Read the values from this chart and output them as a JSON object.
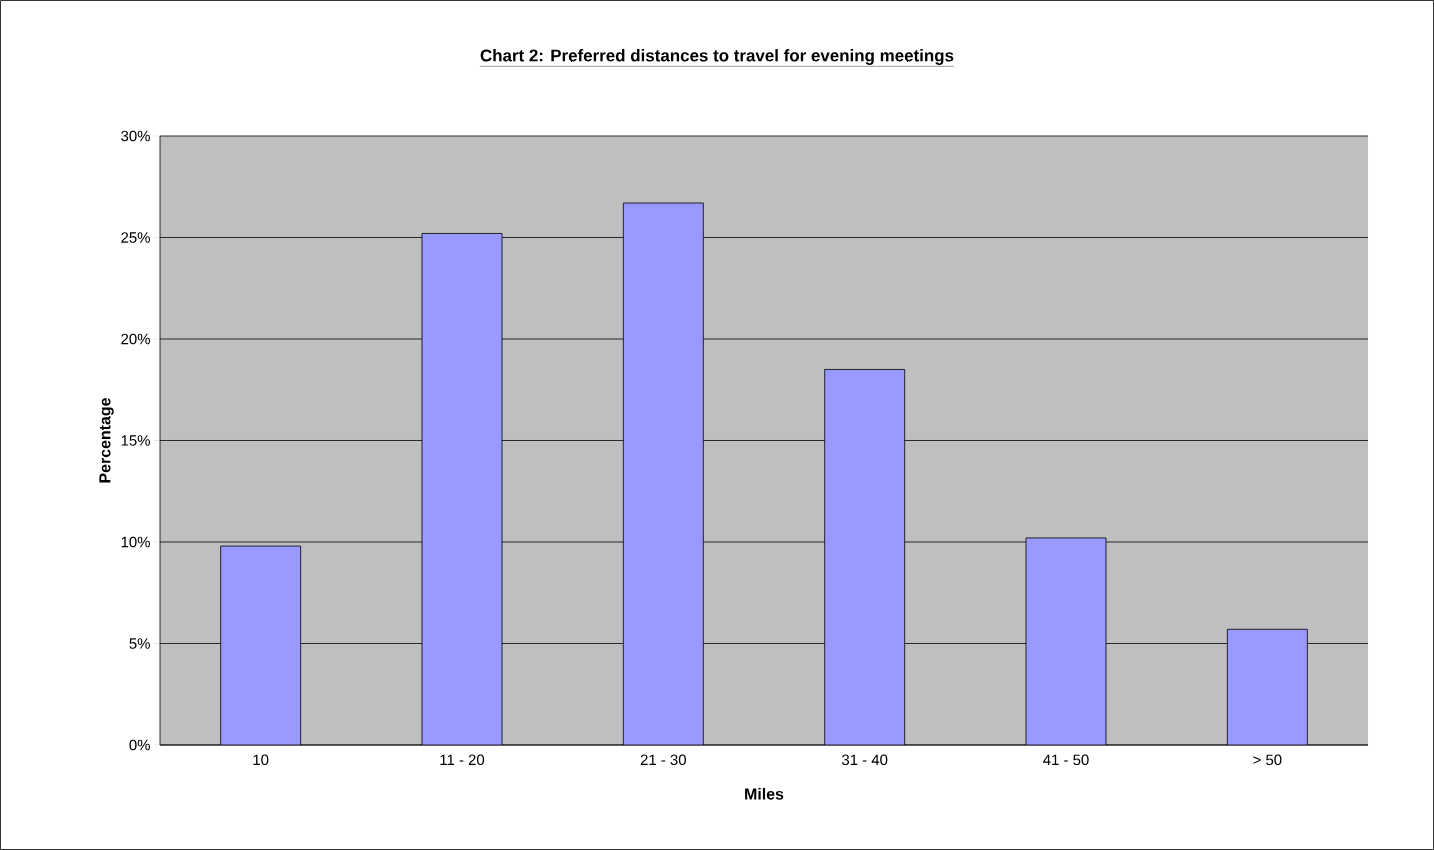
{
  "chart_data": {
    "type": "bar",
    "title": "Chart 2:  Preferred distances to travel for evening meetings",
    "xlabel": "Miles",
    "ylabel": "Percentage",
    "categories": [
      "10",
      "11 - 20",
      "21 - 30",
      "31 - 40",
      "41 - 50",
      "> 50"
    ],
    "values": [
      9.8,
      25.2,
      26.7,
      18.5,
      10.2,
      5.7
    ],
    "color": "#9999ff",
    "ylim": [
      0,
      30
    ],
    "yticks": [
      {
        "value": 0,
        "label": "0%"
      },
      {
        "value": 5,
        "label": "5%"
      },
      {
        "value": 10,
        "label": "10%"
      },
      {
        "value": 15,
        "label": "15%"
      },
      {
        "value": 20,
        "label": "20%"
      },
      {
        "value": 25,
        "label": "25%"
      },
      {
        "value": 30,
        "label": "30%"
      }
    ],
    "grid": "y"
  }
}
